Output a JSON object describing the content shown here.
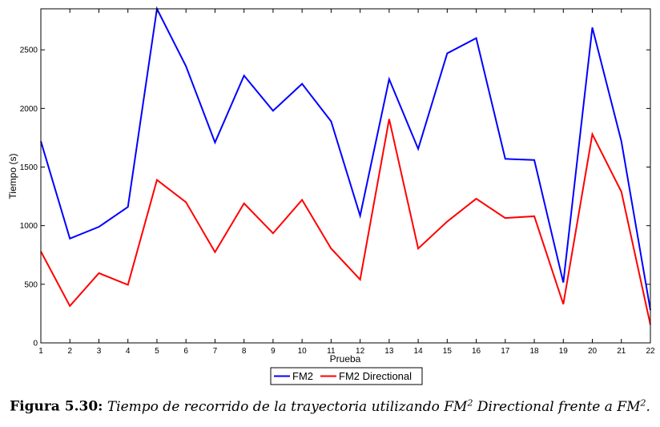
{
  "chart_data": {
    "type": "line",
    "xlabel": "Prueba",
    "ylabel": "Tiempo (s)",
    "xlim": [
      1,
      22
    ],
    "ylim": [
      0,
      2850
    ],
    "x": [
      1,
      2,
      3,
      4,
      5,
      6,
      7,
      8,
      9,
      10,
      11,
      12,
      13,
      14,
      15,
      16,
      17,
      18,
      19,
      20,
      21,
      22
    ],
    "x_ticks": [
      "1",
      "2",
      "3",
      "4",
      "5",
      "6",
      "7",
      "8",
      "9",
      "10",
      "11",
      "12",
      "13",
      "14",
      "15",
      "16",
      "17",
      "18",
      "19",
      "20",
      "21",
      "22"
    ],
    "y_ticks": [
      0,
      500,
      1000,
      1500,
      2000,
      2500
    ],
    "y_tick_labels": [
      "0",
      "500",
      "1000",
      "1500",
      "2000",
      "2500"
    ],
    "grid": false,
    "legend_placement": "bottom-center",
    "series": [
      {
        "name": "FM2",
        "color": "#0000ff",
        "values": [
          1720,
          890,
          990,
          1160,
          2850,
          2360,
          1710,
          2280,
          1980,
          2210,
          1890,
          1085,
          2250,
          1655,
          2470,
          2600,
          1570,
          1560,
          515,
          2690,
          1720,
          280
        ]
      },
      {
        "name": "FM2 Directional",
        "color": "#ff0000",
        "values": [
          780,
          315,
          595,
          495,
          1390,
          1200,
          775,
          1190,
          935,
          1220,
          805,
          540,
          1910,
          805,
          1035,
          1230,
          1065,
          1080,
          330,
          1780,
          1290,
          155
        ]
      }
    ]
  },
  "caption": {
    "label": "Figura 5.30:",
    "text_before": "Tiempo de recorrido de la trayectoria utilizando FM",
    "sup1": "2",
    "text_middle": " Directional frente a FM",
    "sup2": "2",
    "text_after": "."
  }
}
